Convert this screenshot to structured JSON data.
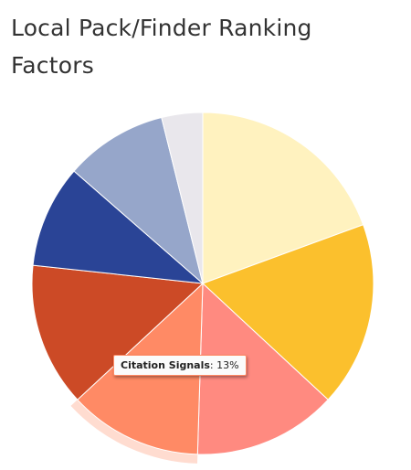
{
  "chart_data": {
    "type": "pie",
    "title": "Local Pack/Finder Ranking Factors",
    "start_angle_deg": 0,
    "direction": "clockwise",
    "slices": [
      {
        "label": "",
        "value": 20,
        "color": "#fff2bf"
      },
      {
        "label": "",
        "value": 18,
        "color": "#fbc02d"
      },
      {
        "label": "",
        "value": 14,
        "color": "#ff8a80"
      },
      {
        "label": "Citation Signals",
        "value": 13,
        "color": "#ff8a65"
      },
      {
        "label": "",
        "value": 14,
        "color": "#cc4a26"
      },
      {
        "label": "",
        "value": 10,
        "color": "#2a4496"
      },
      {
        "label": "",
        "value": 10,
        "color": "#96a6ca"
      },
      {
        "label": "",
        "value": 4,
        "color": "#e9e7ec"
      }
    ],
    "highlighted_slice": 3,
    "tooltip": {
      "label": "Citation Signals",
      "value_text": "13%"
    }
  }
}
